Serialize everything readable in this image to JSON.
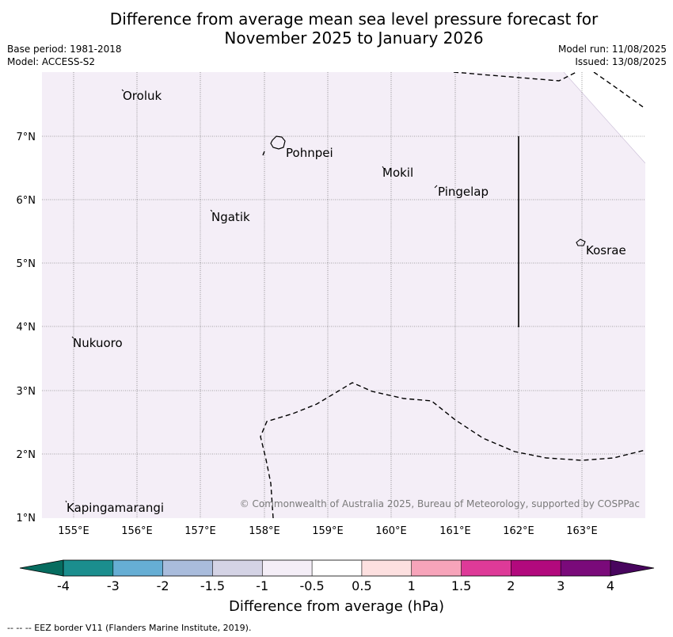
{
  "title_line1": "Difference from average mean sea level pressure forecast for",
  "title_line2": "November 2025 to January 2026",
  "base_period": "Base period: 1981-2018",
  "model": "Model: ACCESS-S2",
  "model_run": "Model run: 11/08/2025",
  "issued": "Issued: 13/08/2025",
  "copyright": "© Commonwealth of Australia 2025, Bureau of Meteorology, supported by COSPPac",
  "footnote": "--  --  -- EEZ border V11 (Flanders Marine Institute, 2019).",
  "lon_ticks": [
    "155°E",
    "156°E",
    "157°E",
    "158°E",
    "159°E",
    "160°E",
    "161°E",
    "162°E",
    "163°E"
  ],
  "lat_ticks": [
    "7°N",
    "6°N",
    "5°N",
    "4°N",
    "3°N",
    "2°N",
    "1°N"
  ],
  "places": [
    "Oroluk",
    "Pohnpei",
    "Mokil",
    "Pingelap",
    "Ngatik",
    "Kosrae",
    "Nukuoro",
    "Kapingamarangi"
  ],
  "colorbar": {
    "title": "Difference from average (hPa)",
    "tick_labels": [
      "-4",
      "-3",
      "-2",
      "-1.5",
      "-1",
      "-0.5",
      "0.5",
      "1",
      "1.5",
      "2",
      "3",
      "4"
    ],
    "colors": [
      "#1b8e8e",
      "#66aed4",
      "#a9bcdc",
      "#d4d3e5",
      "#f4eef7",
      "#ffffff",
      "#fde0e0",
      "#f7a4ba",
      "#de3a98",
      "#b2097d",
      "#7a0a7a"
    ],
    "extend_low_color": "#066c5f",
    "extend_high_color": "#48055e"
  },
  "map_fill_color": "#f4eef7"
}
